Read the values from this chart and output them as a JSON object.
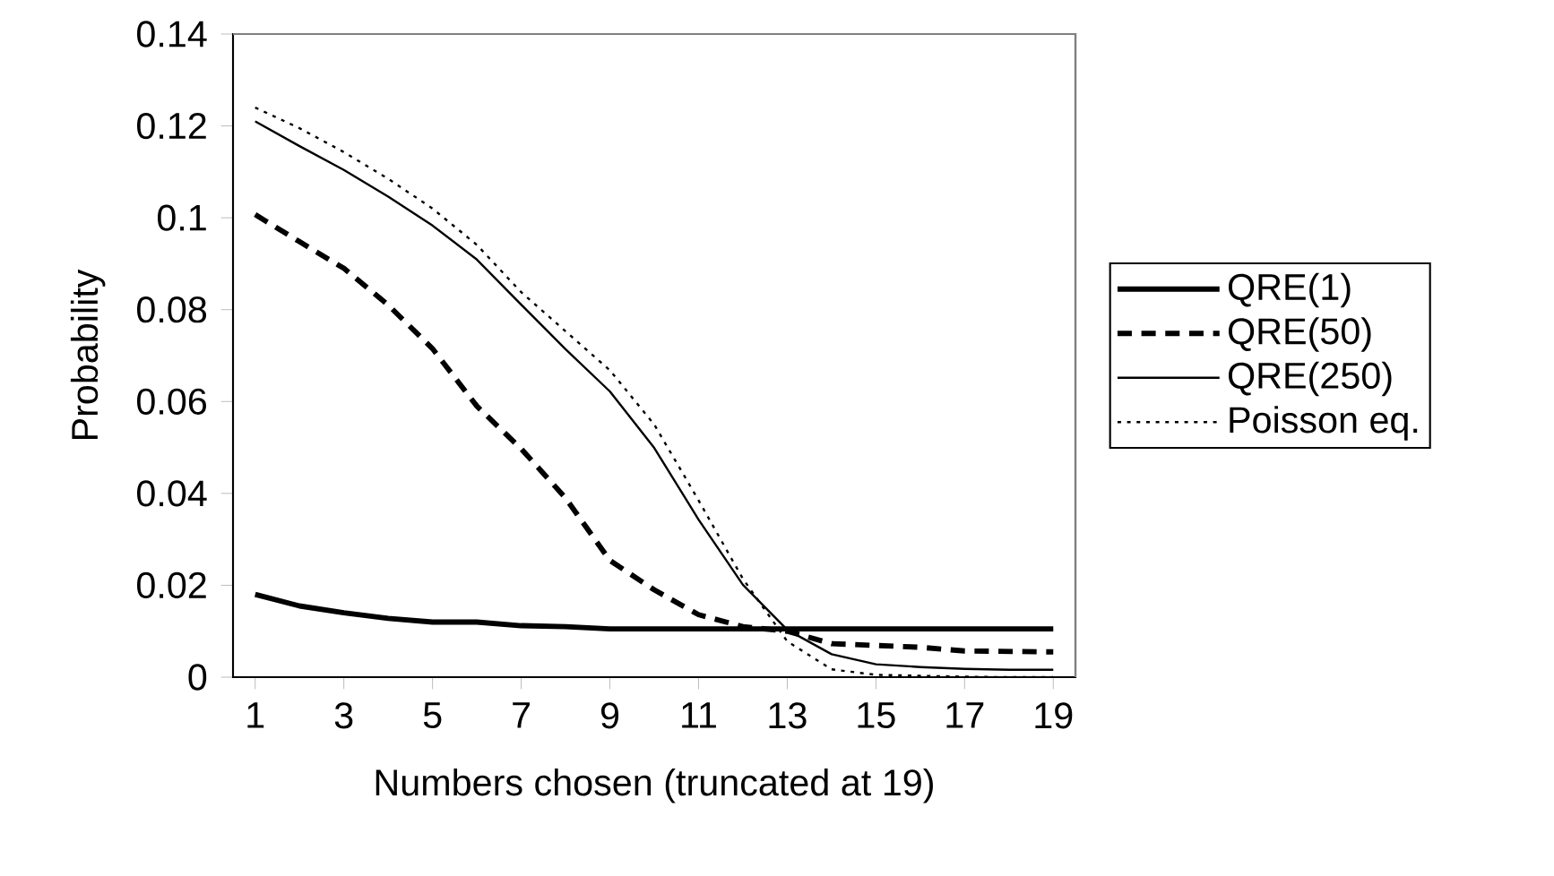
{
  "chart_data": {
    "type": "line",
    "xlabel": "Numbers chosen (truncated at 19)",
    "ylabel": "Probability",
    "x": [
      1,
      2,
      3,
      4,
      5,
      6,
      7,
      8,
      9,
      10,
      11,
      12,
      13,
      14,
      15,
      16,
      17,
      18,
      19
    ],
    "xlim": [
      0.5,
      19.5
    ],
    "xticks": [
      1,
      3,
      5,
      7,
      9,
      11,
      13,
      15,
      17,
      19
    ],
    "ylim": [
      0,
      0.14
    ],
    "yticks": [
      0,
      0.02,
      0.04,
      0.06,
      0.08,
      0.1,
      0.12,
      0.14
    ],
    "grid": false,
    "legend": "right",
    "marker": "none",
    "series": [
      {
        "name": "QRE(1)",
        "color": "#000000",
        "line_style": "solid",
        "values": [
          0.018,
          0.0155,
          0.014,
          0.0128,
          0.012,
          0.012,
          0.0112,
          0.011,
          0.0105,
          0.0105,
          0.0105,
          0.0105,
          0.0105,
          0.0105,
          0.0105,
          0.0105,
          0.0105,
          0.0105,
          0.0105
        ]
      },
      {
        "name": "QRE(50)",
        "color": "#000000",
        "line_style": "dashed",
        "values": [
          0.1007,
          0.0948,
          0.089,
          0.081,
          0.0715,
          0.059,
          0.0497,
          0.039,
          0.0254,
          0.019,
          0.0136,
          0.011,
          0.01,
          0.0073,
          0.0069,
          0.0065,
          0.0057,
          0.0056,
          0.0055
        ]
      },
      {
        "name": "QRE(250)",
        "color": "#000000",
        "line_style": "solid",
        "values": [
          0.121,
          0.1156,
          0.1104,
          0.1046,
          0.0983,
          0.0909,
          0.0811,
          0.0714,
          0.0622,
          0.0499,
          0.0343,
          0.0201,
          0.0103,
          0.005,
          0.0028,
          0.0022,
          0.0018,
          0.0016,
          0.0016
        ]
      },
      {
        "name": "Poisson eq.",
        "color": "#000000",
        "line_style": "dotted",
        "values": [
          0.124,
          0.1195,
          0.1143,
          0.1085,
          0.102,
          0.0941,
          0.0838,
          0.0753,
          0.0668,
          0.055,
          0.0385,
          0.0214,
          0.0078,
          0.0017,
          0.0005,
          0.0003,
          0.0001,
          0,
          0
        ]
      }
    ]
  }
}
